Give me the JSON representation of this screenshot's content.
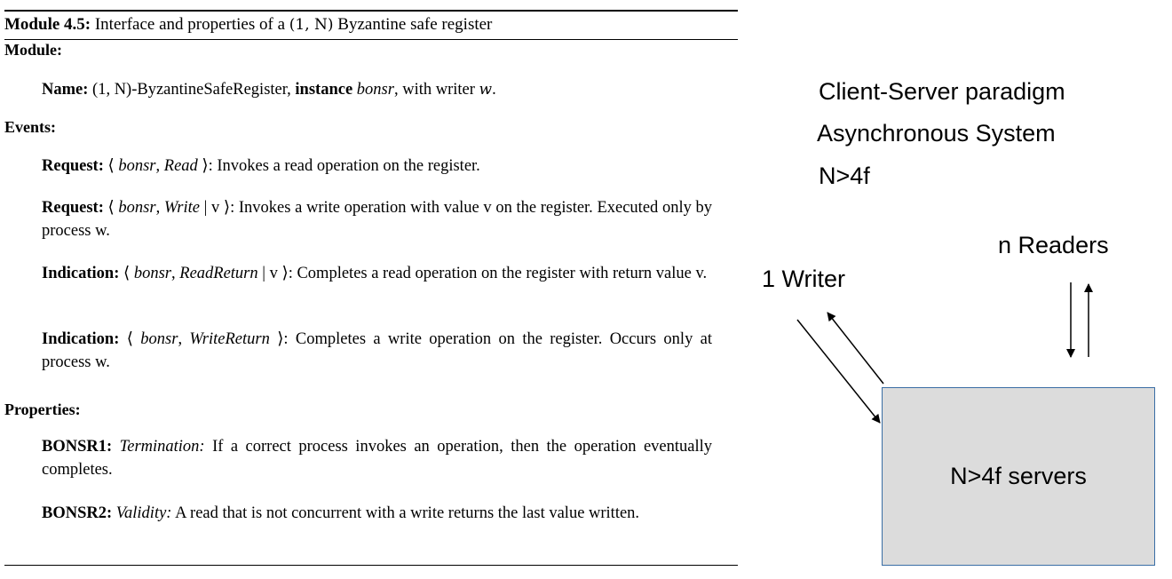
{
  "module": {
    "title_bold": "Module 4.5:",
    "title_pre": " Interface and properties of a ",
    "title_math": "(1, N)",
    "title_post": " Byzantine safe register",
    "module_heading": "Module:",
    "name_label": "Name:",
    "name_math": "(1, N)",
    "name_text1": "-ByzantineSafeRegister, ",
    "name_instance": "instance",
    "name_bonsr": "bonsr",
    "name_text2": ", with writer ",
    "name_w": "w",
    "name_end": ".",
    "events_heading": "Events:",
    "events": [
      {
        "label": "Request:",
        "open": " ⟨ ",
        "inst": "bonsr",
        "sep": ", ",
        "ev": "Read",
        "arg": "",
        "close": " ⟩",
        "desc": ": Invokes a read operation on the register."
      },
      {
        "label": "Request:",
        "open": " ⟨ ",
        "inst": "bonsr",
        "sep": ", ",
        "ev": "Write",
        "arg": " | v",
        "close": " ⟩",
        "desc": ": Invokes a write operation with value v on the register. Executed only by process w."
      },
      {
        "label": "Indication:",
        "open": " ⟨ ",
        "inst": "bonsr",
        "sep": ", ",
        "ev": "ReadReturn",
        "arg": " | v",
        "close": " ⟩",
        "desc": ": Completes a read operation on the register with return value v."
      },
      {
        "label": "Indication:",
        "open": " ⟨ ",
        "inst": "bonsr",
        "sep": ", ",
        "ev": "WriteReturn",
        "arg": "",
        "close": " ⟩",
        "desc": ": Completes a write operation on the register. Occurs only at process w."
      }
    ],
    "properties_heading": "Properties:",
    "properties": [
      {
        "id": "BONSR1:",
        "name": "Termination:",
        "desc": " If a correct process invokes an operation, then the operation eventually completes."
      },
      {
        "id": "BONSR2:",
        "name": "Validity:",
        "desc": " A read that is not concurrent with a write returns the last value written."
      }
    ]
  },
  "diagram": {
    "line1": "Client-Server paradigm",
    "line2": "Asynchronous System",
    "line3": "N>4f",
    "readers": "n Readers",
    "writer": "1 Writer",
    "servers": "N>4f servers",
    "box_fill": "#dcdcdc",
    "box_border": "#3a6ea5"
  }
}
